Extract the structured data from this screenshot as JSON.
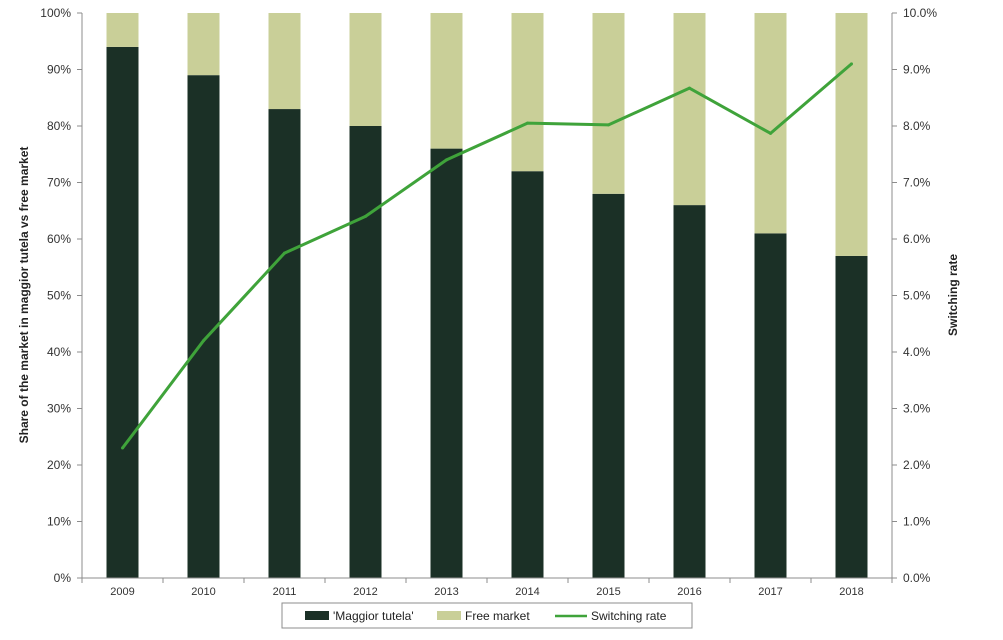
{
  "chart_data": {
    "type": "bar",
    "stacked": true,
    "categories": [
      "2009",
      "2010",
      "2011",
      "2012",
      "2013",
      "2014",
      "2015",
      "2016",
      "2017",
      "2018"
    ],
    "series": [
      {
        "name": "'Maggior tutela'",
        "type": "bar",
        "axis": "left",
        "color": "#1b3026",
        "values": [
          94,
          89,
          83,
          80,
          76,
          72,
          68,
          66,
          61,
          57
        ]
      },
      {
        "name": "Free market",
        "type": "bar",
        "axis": "left",
        "color": "#c9cf98",
        "values": [
          6,
          11,
          17,
          20,
          24,
          28,
          32,
          34,
          39,
          43
        ]
      },
      {
        "name": "Switching rate",
        "type": "line",
        "axis": "right",
        "color": "#3fa33a",
        "values": [
          2.3,
          4.2,
          5.75,
          6.4,
          7.4,
          8.05,
          8.02,
          8.67,
          7.87,
          9.1
        ]
      }
    ],
    "ylabel": "Share of the market in maggior tutela vs free market",
    "y2label": "Switching rate",
    "ylim": [
      0,
      100
    ],
    "y2lim": [
      0,
      10
    ],
    "yticks": [
      "0%",
      "10%",
      "20%",
      "30%",
      "40%",
      "50%",
      "60%",
      "70%",
      "80%",
      "90%",
      "100%"
    ],
    "y2ticks": [
      "0.0%",
      "1.0%",
      "2.0%",
      "3.0%",
      "4.0%",
      "5.0%",
      "6.0%",
      "7.0%",
      "8.0%",
      "9.0%",
      "10.0%"
    ],
    "grid": false,
    "legend": "bottom"
  }
}
